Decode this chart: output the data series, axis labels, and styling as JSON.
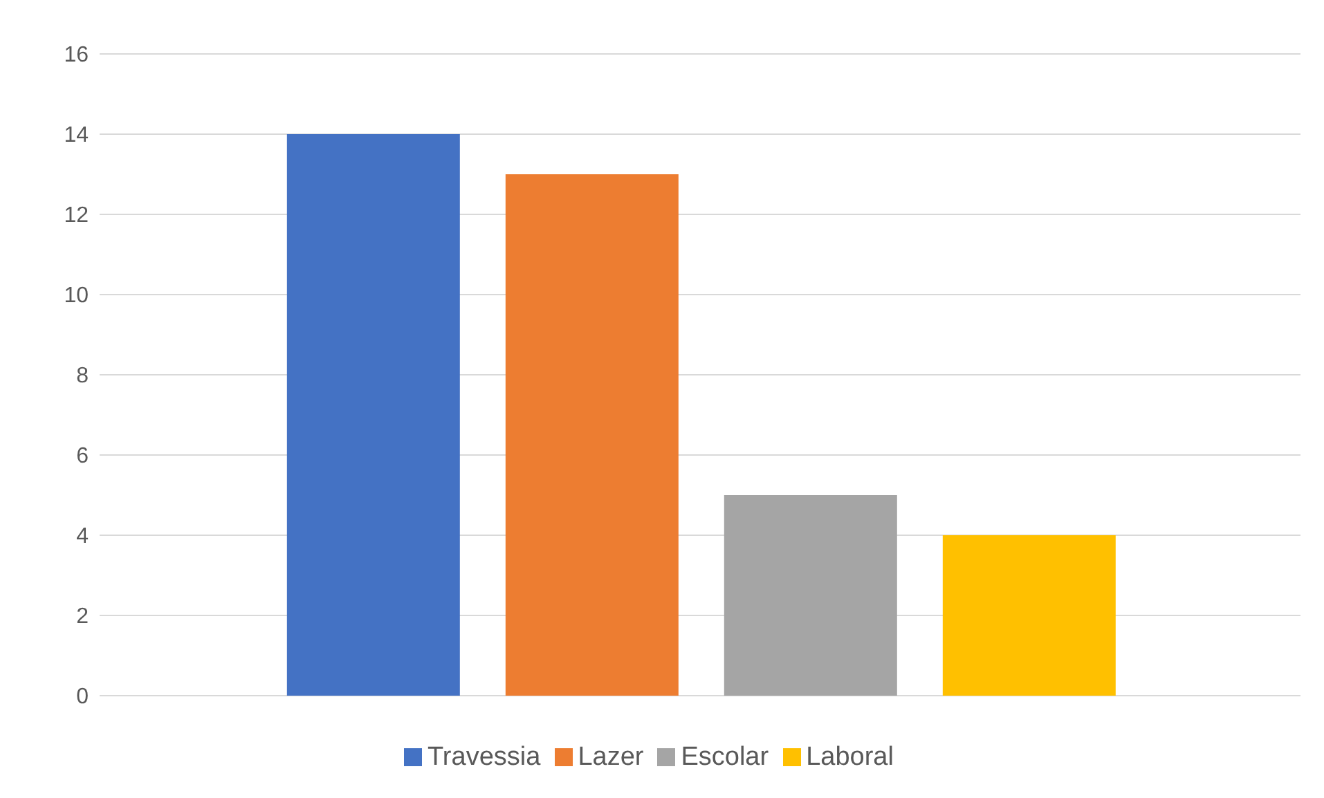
{
  "chart_data": {
    "type": "bar",
    "categories": [
      null
    ],
    "series": [
      {
        "name": "Travessia",
        "color": "#4472c4",
        "values": [
          14
        ]
      },
      {
        "name": "Lazer",
        "color": "#ed7d31",
        "values": [
          13
        ]
      },
      {
        "name": "Escolar",
        "color": "#a5a5a5",
        "values": [
          5
        ]
      },
      {
        "name": "Laboral",
        "color": "#ffc000",
        "values": [
          4
        ]
      }
    ],
    "ylim": [
      0,
      16
    ],
    "yticks": [
      0,
      2,
      4,
      6,
      8,
      10,
      12,
      14,
      16
    ],
    "grid": "y",
    "legend": "bottom"
  }
}
